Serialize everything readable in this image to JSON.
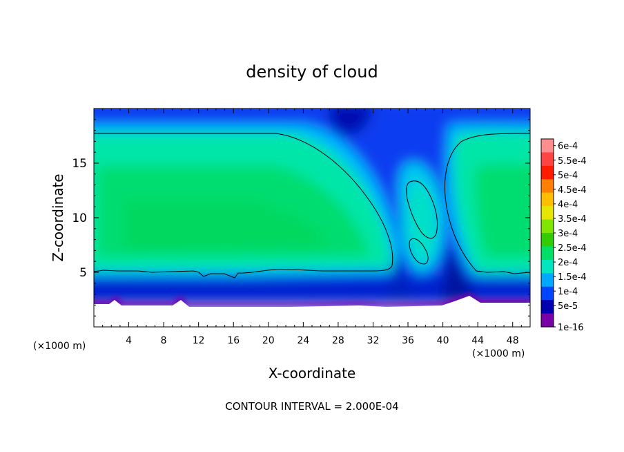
{
  "chart_data": {
    "type": "heatmap",
    "title": "density of cloud",
    "xlabel": "X-coordinate",
    "ylabel": "Z-coordinate",
    "x_unit_label": "(×1000 m)",
    "y_unit_label": "(×1000 m)",
    "xlim": [
      0,
      50
    ],
    "ylim": [
      0,
      20
    ],
    "x_ticks": [
      4,
      8,
      12,
      16,
      20,
      24,
      28,
      32,
      36,
      40,
      44,
      48
    ],
    "y_ticks": [
      5,
      10,
      15
    ],
    "contour_interval_label": "CONTOUR INTERVAL = 2.000E-04",
    "contour_level": 0.0002,
    "colorbar": {
      "labels": [
        "6e-4",
        "5.5e-4",
        "5e-4",
        "4.5e-4",
        "4e-4",
        "3.5e-4",
        "3e-4",
        "2.5e-4",
        "2e-4",
        "1.5e-4",
        "1e-4",
        "5e-5",
        "1e-16"
      ],
      "colors": [
        "#ff8f8f",
        "#ff4444",
        "#ff1a00",
        "#ff7f00",
        "#ffbf00",
        "#e6e600",
        "#80e600",
        "#33cc00",
        "#00e066",
        "#00e6c0",
        "#00a8ff",
        "#0044ff",
        "#0000b0",
        "#7a00a8"
      ]
    },
    "description_fields": {
      "cloud_base_z": 5,
      "cloud_top_z": 17.6,
      "core_value": 0.00028,
      "clear_gap_x": [
        33,
        40
      ]
    }
  }
}
